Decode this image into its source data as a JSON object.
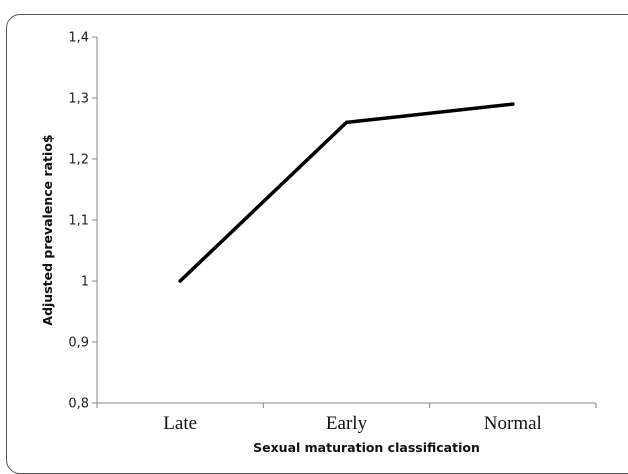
{
  "chart_data": {
    "type": "line",
    "categories": [
      "Late",
      "Early",
      "Normal"
    ],
    "series": [
      {
        "values": [
          1.0,
          1.26,
          1.29
        ]
      }
    ],
    "xlabel": "Sexual maturation classification",
    "ylabel": "Adjusted prevalence ratio$",
    "ylim": [
      0.8,
      1.4
    ],
    "yticks": [
      "1,4",
      "1,3",
      "1,2",
      "1,1",
      "1",
      "0,9",
      "0,8"
    ],
    "grid": false,
    "line_color": "#000000"
  }
}
